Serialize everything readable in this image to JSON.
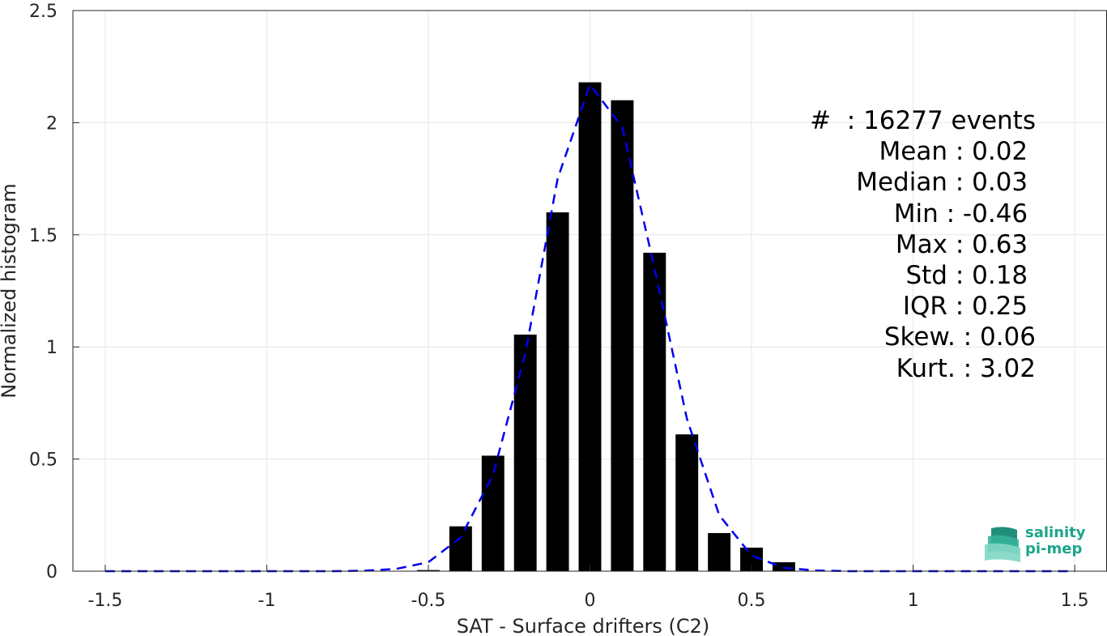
{
  "chart_data": {
    "type": "bar",
    "xlabel": "SAT - Surface drifters (C2)",
    "ylabel": "Normalized histogram",
    "xlim": [
      -1.6,
      1.6
    ],
    "ylim": [
      0,
      2.5
    ],
    "xticks": [
      -1.5,
      -1,
      -0.5,
      0,
      0.5,
      1,
      1.5
    ],
    "xtick_labels": [
      "-1.5",
      "-1",
      "-0.5",
      "0",
      "0.5",
      "1",
      "1.5"
    ],
    "yticks": [
      0,
      0.5,
      1,
      1.5,
      2,
      2.5
    ],
    "ytick_labels": [
      "0",
      "0.5",
      "1",
      "1.5",
      "2",
      "2.5"
    ],
    "grid": true,
    "bar_width": 0.07,
    "bars": {
      "x": [
        -0.5,
        -0.4,
        -0.3,
        -0.2,
        -0.1,
        0.0,
        0.1,
        0.2,
        0.3,
        0.4,
        0.5,
        0.6
      ],
      "values": [
        0.005,
        0.2,
        0.515,
        1.055,
        1.6,
        2.18,
        2.1,
        1.42,
        0.61,
        0.17,
        0.105,
        0.04
      ],
      "color": "#000000"
    },
    "fit_curve": {
      "style": "dashed",
      "color": "#0000ee",
      "x": [
        -1.5,
        -1.4,
        -1.3,
        -1.2,
        -1.1,
        -1.0,
        -0.9,
        -0.8,
        -0.7,
        -0.6,
        -0.5,
        -0.4,
        -0.3,
        -0.2,
        -0.1,
        0.0,
        0.1,
        0.2,
        0.3,
        0.4,
        0.5,
        0.6,
        0.7,
        0.8,
        0.9,
        1.0,
        1.1,
        1.2,
        1.3,
        1.4,
        1.5
      ],
      "y": [
        0,
        0,
        0,
        0,
        0,
        0,
        0,
        0,
        0.002,
        0.01,
        0.04,
        0.15,
        0.43,
        0.97,
        1.75,
        2.17,
        1.98,
        1.35,
        0.68,
        0.25,
        0.07,
        0.015,
        0.003,
        0,
        0,
        0,
        0,
        0,
        0,
        0,
        0
      ]
    }
  },
  "stats": {
    "lines": [
      "#  : 16277 events",
      "Mean : 0.02 ",
      "Median : 0.03 ",
      "Min : -0.46 ",
      "Max : 0.63 ",
      "Std : 0.18 ",
      "IQR : 0.25 ",
      "Skew. : 0.06",
      "Kurt. : 3.02"
    ]
  },
  "logo": {
    "line1": "salinity",
    "line2": "pi-mep"
  }
}
